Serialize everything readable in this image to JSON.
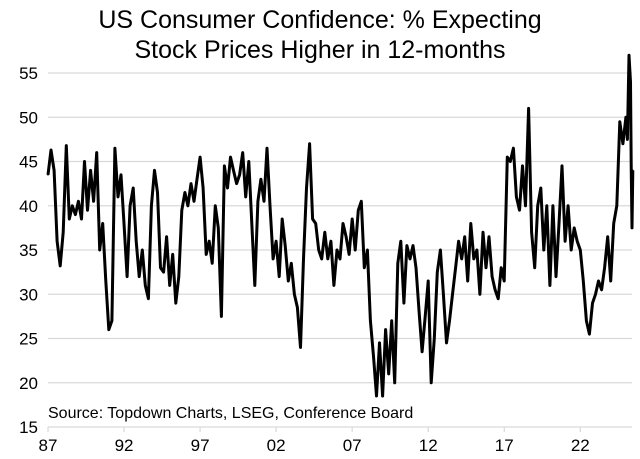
{
  "chart_data": {
    "type": "line",
    "title_lines": [
      "US Consumer Confidence: % Expecting",
      "Stock Prices Higher in 12-months"
    ],
    "xlabel": "",
    "ylabel": "",
    "source": "Source: Topdown Charts, LSEG, Conference Board",
    "xlim": [
      1987,
      2025.4
    ],
    "ylim": [
      15,
      55
    ],
    "x_ticks": [
      {
        "value": 1987,
        "label": "87"
      },
      {
        "value": 1992,
        "label": "92"
      },
      {
        "value": 1997,
        "label": "97"
      },
      {
        "value": 2002,
        "label": "02"
      },
      {
        "value": 2007,
        "label": "07"
      },
      {
        "value": 2012,
        "label": "12"
      },
      {
        "value": 2017,
        "label": "17"
      },
      {
        "value": 2022,
        "label": "22"
      }
    ],
    "y_ticks": [
      15,
      20,
      25,
      30,
      35,
      40,
      45,
      50,
      55
    ],
    "grid": "horizontal",
    "legend": "none",
    "series": [
      {
        "name": "% Expecting Stock Prices Higher",
        "color": "#000000",
        "points": [
          [
            1987.0,
            43.5
          ],
          [
            1987.2,
            46.3
          ],
          [
            1987.4,
            44.0
          ],
          [
            1987.6,
            36.0
          ],
          [
            1987.8,
            33.2
          ],
          [
            1988.0,
            37.0
          ],
          [
            1988.2,
            46.8
          ],
          [
            1988.4,
            38.5
          ],
          [
            1988.6,
            40.0
          ],
          [
            1988.8,
            39.0
          ],
          [
            1989.0,
            40.5
          ],
          [
            1989.2,
            38.5
          ],
          [
            1989.4,
            45.0
          ],
          [
            1989.6,
            39.5
          ],
          [
            1989.8,
            44.0
          ],
          [
            1990.0,
            40.5
          ],
          [
            1990.2,
            46.0
          ],
          [
            1990.4,
            35.0
          ],
          [
            1990.6,
            38.0
          ],
          [
            1990.8,
            31.5
          ],
          [
            1991.0,
            26.0
          ],
          [
            1991.2,
            27.0
          ],
          [
            1991.4,
            46.5
          ],
          [
            1991.6,
            41.0
          ],
          [
            1991.8,
            43.5
          ],
          [
            1992.0,
            38.0
          ],
          [
            1992.2,
            32.0
          ],
          [
            1992.4,
            40.0
          ],
          [
            1992.6,
            42.0
          ],
          [
            1992.8,
            36.0
          ],
          [
            1993.0,
            32.0
          ],
          [
            1993.2,
            35.0
          ],
          [
            1993.4,
            31.0
          ],
          [
            1993.6,
            29.5
          ],
          [
            1993.8,
            40.0
          ],
          [
            1994.0,
            44.0
          ],
          [
            1994.2,
            41.5
          ],
          [
            1994.4,
            33.0
          ],
          [
            1994.6,
            32.5
          ],
          [
            1994.8,
            36.5
          ],
          [
            1995.0,
            31.0
          ],
          [
            1995.2,
            34.5
          ],
          [
            1995.4,
            29.0
          ],
          [
            1995.6,
            32.0
          ],
          [
            1995.8,
            39.5
          ],
          [
            1996.0,
            41.5
          ],
          [
            1996.2,
            40.0
          ],
          [
            1996.4,
            42.5
          ],
          [
            1996.6,
            40.5
          ],
          [
            1996.8,
            43.0
          ],
          [
            1997.0,
            45.5
          ],
          [
            1997.2,
            42.0
          ],
          [
            1997.4,
            34.5
          ],
          [
            1997.6,
            36.0
          ],
          [
            1997.8,
            33.5
          ],
          [
            1998.0,
            40.0
          ],
          [
            1998.2,
            37.5
          ],
          [
            1998.4,
            27.5
          ],
          [
            1998.6,
            44.5
          ],
          [
            1998.8,
            42.0
          ],
          [
            1999.0,
            45.5
          ],
          [
            1999.2,
            44.0
          ],
          [
            1999.4,
            42.5
          ],
          [
            1999.6,
            43.5
          ],
          [
            1999.8,
            46.0
          ],
          [
            2000.0,
            41.0
          ],
          [
            2000.2,
            45.0
          ],
          [
            2000.4,
            38.0
          ],
          [
            2000.6,
            31.0
          ],
          [
            2000.8,
            40.5
          ],
          [
            2001.0,
            43.0
          ],
          [
            2001.2,
            40.5
          ],
          [
            2001.4,
            46.5
          ],
          [
            2001.6,
            40.0
          ],
          [
            2001.8,
            34.0
          ],
          [
            2002.0,
            36.0
          ],
          [
            2002.2,
            32.0
          ],
          [
            2002.4,
            38.5
          ],
          [
            2002.6,
            35.5
          ],
          [
            2002.8,
            31.5
          ],
          [
            2003.0,
            33.5
          ],
          [
            2003.2,
            30.0
          ],
          [
            2003.4,
            28.5
          ],
          [
            2003.6,
            24.0
          ],
          [
            2003.8,
            34.0
          ],
          [
            2004.0,
            42.0
          ],
          [
            2004.2,
            47.0
          ],
          [
            2004.4,
            38.5
          ],
          [
            2004.6,
            38.0
          ],
          [
            2004.8,
            35.0
          ],
          [
            2005.0,
            34.0
          ],
          [
            2005.2,
            37.0
          ],
          [
            2005.4,
            34.0
          ],
          [
            2005.6,
            36.0
          ],
          [
            2005.8,
            31.0
          ],
          [
            2006.0,
            35.0
          ],
          [
            2006.2,
            34.0
          ],
          [
            2006.4,
            38.0
          ],
          [
            2006.6,
            36.5
          ],
          [
            2006.8,
            34.5
          ],
          [
            2007.0,
            38.5
          ],
          [
            2007.2,
            35.0
          ],
          [
            2007.4,
            39.5
          ],
          [
            2007.6,
            40.5
          ],
          [
            2007.8,
            33.0
          ],
          [
            2008.0,
            35.0
          ],
          [
            2008.2,
            27.0
          ],
          [
            2008.4,
            23.0
          ],
          [
            2008.6,
            18.5
          ],
          [
            2008.8,
            24.5
          ],
          [
            2009.0,
            18.5
          ],
          [
            2009.2,
            26.0
          ],
          [
            2009.4,
            21.0
          ],
          [
            2009.6,
            27.0
          ],
          [
            2009.8,
            20.0
          ],
          [
            2010.0,
            33.5
          ],
          [
            2010.2,
            36.0
          ],
          [
            2010.4,
            29.0
          ],
          [
            2010.6,
            35.5
          ],
          [
            2010.8,
            34.0
          ],
          [
            2011.0,
            35.5
          ],
          [
            2011.2,
            33.0
          ],
          [
            2011.4,
            28.0
          ],
          [
            2011.6,
            23.5
          ],
          [
            2011.8,
            27.5
          ],
          [
            2012.0,
            31.5
          ],
          [
            2012.2,
            20.0
          ],
          [
            2012.4,
            25.0
          ],
          [
            2012.6,
            32.5
          ],
          [
            2012.8,
            35.0
          ],
          [
            2013.0,
            30.0
          ],
          [
            2013.2,
            24.5
          ],
          [
            2013.4,
            27.0
          ],
          [
            2013.6,
            30.0
          ],
          [
            2013.8,
            33.0
          ],
          [
            2014.0,
            36.0
          ],
          [
            2014.2,
            34.0
          ],
          [
            2014.4,
            36.5
          ],
          [
            2014.6,
            31.5
          ],
          [
            2014.8,
            38.0
          ],
          [
            2015.0,
            34.0
          ],
          [
            2015.2,
            35.0
          ],
          [
            2015.4,
            30.0
          ],
          [
            2015.6,
            37.0
          ],
          [
            2015.8,
            33.0
          ],
          [
            2016.0,
            36.5
          ],
          [
            2016.2,
            32.0
          ],
          [
            2016.4,
            30.5
          ],
          [
            2016.6,
            29.5
          ],
          [
            2016.8,
            33.0
          ],
          [
            2017.0,
            31.5
          ],
          [
            2017.2,
            45.5
          ],
          [
            2017.4,
            45.0
          ],
          [
            2017.6,
            46.5
          ],
          [
            2017.8,
            41.0
          ],
          [
            2018.0,
            39.5
          ],
          [
            2018.2,
            44.5
          ],
          [
            2018.4,
            40.0
          ],
          [
            2018.6,
            51.0
          ],
          [
            2018.8,
            37.0
          ],
          [
            2019.0,
            33.0
          ],
          [
            2019.2,
            40.0
          ],
          [
            2019.4,
            42.0
          ],
          [
            2019.6,
            35.0
          ],
          [
            2019.8,
            40.0
          ],
          [
            2020.0,
            31.0
          ],
          [
            2020.2,
            40.0
          ],
          [
            2020.4,
            32.0
          ],
          [
            2020.6,
            38.0
          ],
          [
            2020.8,
            44.5
          ],
          [
            2021.0,
            36.0
          ],
          [
            2021.2,
            40.0
          ],
          [
            2021.4,
            35.0
          ],
          [
            2021.6,
            37.5
          ],
          [
            2021.8,
            36.0
          ],
          [
            2022.0,
            35.0
          ],
          [
            2022.2,
            31.5
          ],
          [
            2022.4,
            27.0
          ],
          [
            2022.6,
            25.5
          ],
          [
            2022.8,
            29.0
          ],
          [
            2023.0,
            30.0
          ],
          [
            2023.2,
            31.5
          ],
          [
            2023.4,
            30.5
          ],
          [
            2023.6,
            33.0
          ],
          [
            2023.8,
            36.5
          ],
          [
            2024.0,
            31.5
          ],
          [
            2024.2,
            38.0
          ],
          [
            2024.4,
            40.0
          ],
          [
            2024.6,
            49.5
          ],
          [
            2024.8,
            47.0
          ],
          [
            2025.0,
            50.0
          ],
          [
            2025.1,
            47.5
          ],
          [
            2025.2,
            57.0
          ],
          [
            2025.3,
            54.0
          ],
          [
            2025.35,
            44.5
          ],
          [
            2025.4,
            37.5
          ],
          [
            2025.45,
            44.0
          ]
        ]
      }
    ]
  }
}
